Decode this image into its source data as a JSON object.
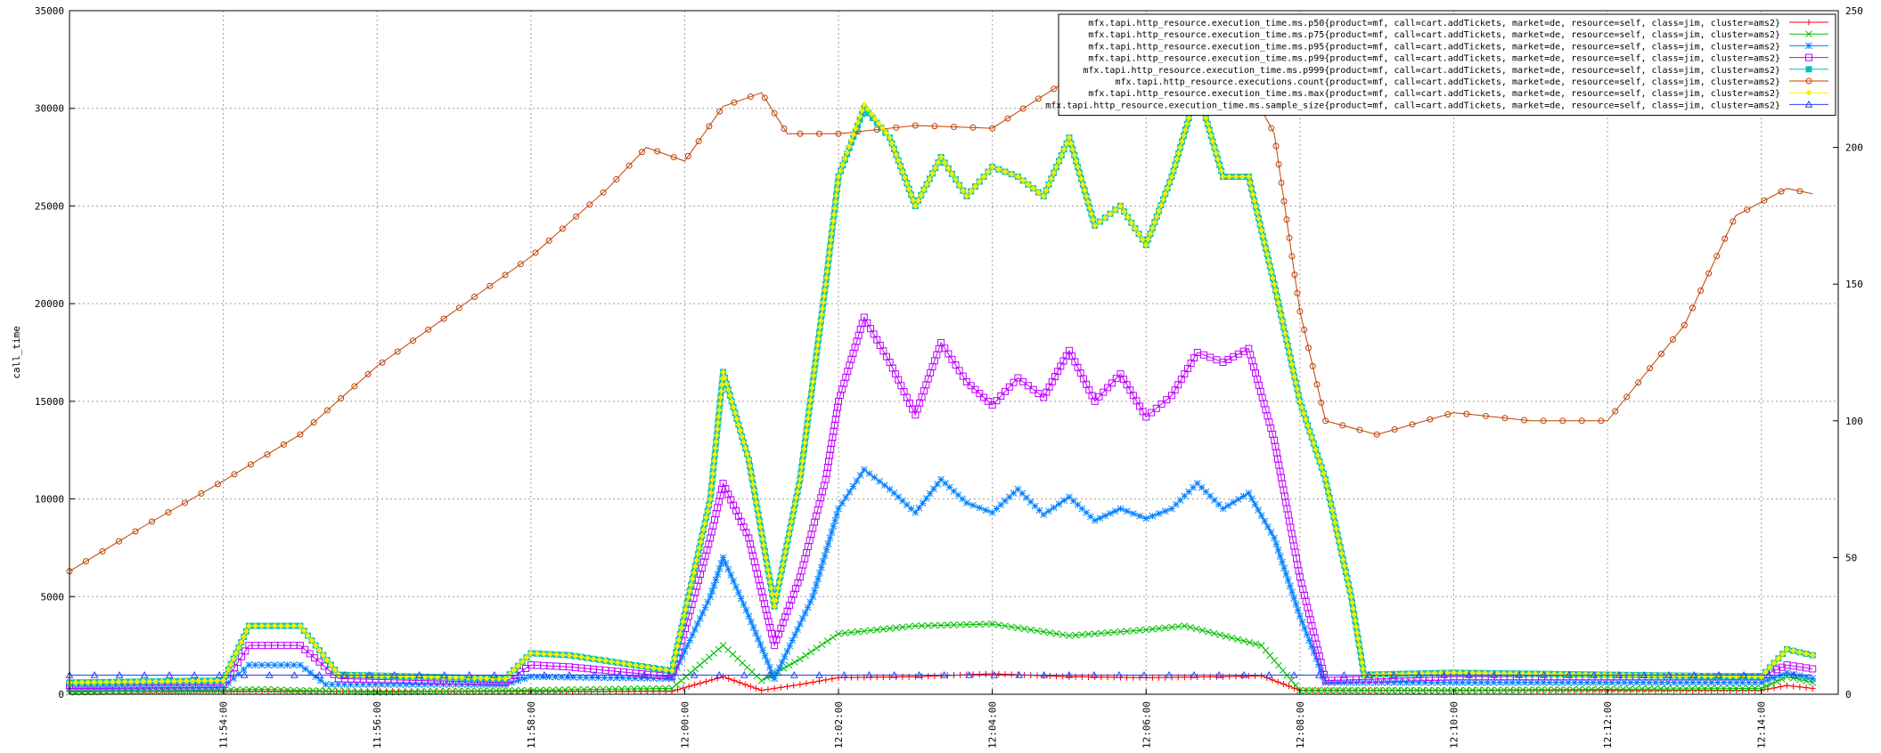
{
  "chart_data": {
    "type": "line",
    "title": "",
    "xlabel": "",
    "ylabel": "call_time",
    "y2label": "",
    "xlim": [
      "11:52:00",
      "12:15:00"
    ],
    "ylim": [
      0,
      35000
    ],
    "y2lim": [
      0,
      250
    ],
    "grid": true,
    "legend_position": "top-right",
    "x_ticks": [
      "11:54:00",
      "11:56:00",
      "11:58:00",
      "12:00:00",
      "12:02:00",
      "12:04:00",
      "12:06:00",
      "12:08:00",
      "12:10:00",
      "12:12:00",
      "12:14:00"
    ],
    "y_ticks": [
      "0",
      "5000",
      "10000",
      "15000",
      "20000",
      "25000",
      "30000",
      "35000"
    ],
    "y2_ticks": [
      "0",
      "50",
      "100",
      "150",
      "200",
      "250"
    ],
    "series": [
      {
        "name": "mfx.tapi.http_resource.execution_time.ms.p50{product=mf, call=cart.addTickets, market=de, resource=self, class=jim, cluster=ams2}",
        "color": "#ff0000",
        "marker": "plus",
        "axis": "y1",
        "points": [
          [
            "11:52:00",
            150
          ],
          [
            "11:59:50",
            150
          ],
          [
            "12:00:30",
            900
          ],
          [
            "12:01:00",
            200
          ],
          [
            "12:01:30",
            500
          ],
          [
            "12:02:00",
            850
          ],
          [
            "12:03:00",
            900
          ],
          [
            "12:04:00",
            1050
          ],
          [
            "12:05:00",
            900
          ],
          [
            "12:06:00",
            850
          ],
          [
            "12:07:00",
            900
          ],
          [
            "12:07:30",
            950
          ],
          [
            "12:08:00",
            200
          ],
          [
            "12:14:00",
            200
          ],
          [
            "12:14:20",
            450
          ],
          [
            "12:14:40",
            300
          ]
        ]
      },
      {
        "name": "mfx.tapi.http_resource.execution_time.ms.p75{product=mf, call=cart.addTickets, market=de, resource=self, class=jim, cluster=ams2}",
        "color": "#00c000",
        "marker": "x",
        "axis": "y1",
        "points": [
          [
            "11:52:00",
            100
          ],
          [
            "11:54:30",
            250
          ],
          [
            "11:56:00",
            100
          ],
          [
            "11:59:50",
            300
          ],
          [
            "12:00:30",
            2500
          ],
          [
            "12:01:00",
            700
          ],
          [
            "12:01:30",
            1800
          ],
          [
            "12:02:00",
            3100
          ],
          [
            "12:03:00",
            3500
          ],
          [
            "12:04:00",
            3600
          ],
          [
            "12:05:00",
            3000
          ],
          [
            "12:06:00",
            3300
          ],
          [
            "12:06:30",
            3500
          ],
          [
            "12:07:30",
            2500
          ],
          [
            "12:08:00",
            200
          ],
          [
            "12:10:00",
            200
          ],
          [
            "12:14:00",
            300
          ],
          [
            "12:14:20",
            900
          ],
          [
            "12:14:40",
            600
          ]
        ]
      },
      {
        "name": "mfx.tapi.http_resource.execution_time.ms.p95{product=mf, call=cart.addTickets, market=de, resource=self, class=jim, cluster=ams2}",
        "color": "#0080ff",
        "marker": "star",
        "axis": "y1",
        "points": [
          [
            "11:52:00",
            300
          ],
          [
            "11:54:00",
            350
          ],
          [
            "11:54:20",
            1500
          ],
          [
            "11:55:00",
            1500
          ],
          [
            "11:55:20",
            500
          ],
          [
            "11:57:40",
            500
          ],
          [
            "11:58:00",
            900
          ],
          [
            "11:59:50",
            800
          ],
          [
            "12:00:20",
            5000
          ],
          [
            "12:00:30",
            7000
          ],
          [
            "12:00:50",
            4000
          ],
          [
            "12:01:10",
            800
          ],
          [
            "12:01:40",
            5000
          ],
          [
            "12:02:00",
            9500
          ],
          [
            "12:02:20",
            11500
          ],
          [
            "12:02:40",
            10500
          ],
          [
            "12:03:00",
            9300
          ],
          [
            "12:03:20",
            11000
          ],
          [
            "12:03:40",
            9800
          ],
          [
            "12:04:00",
            9300
          ],
          [
            "12:04:20",
            10500
          ],
          [
            "12:04:40",
            9200
          ],
          [
            "12:05:00",
            10100
          ],
          [
            "12:05:20",
            8900
          ],
          [
            "12:05:40",
            9500
          ],
          [
            "12:06:00",
            9000
          ],
          [
            "12:06:20",
            9500
          ],
          [
            "12:06:40",
            10800
          ],
          [
            "12:07:00",
            9500
          ],
          [
            "12:07:20",
            10300
          ],
          [
            "12:07:40",
            8000
          ],
          [
            "12:08:00",
            4000
          ],
          [
            "12:08:20",
            600
          ],
          [
            "12:14:00",
            600
          ],
          [
            "12:14:20",
            1100
          ],
          [
            "12:14:40",
            800
          ]
        ]
      },
      {
        "name": "mfx.tapi.http_resource.execution_time.ms.p99{product=mf, call=cart.addTickets, market=de, resource=self, class=jim, cluster=ams2}",
        "color": "#c000ff",
        "marker": "square",
        "axis": "y1",
        "points": [
          [
            "11:52:00",
            450
          ],
          [
            "11:54:00",
            500
          ],
          [
            "11:54:20",
            2500
          ],
          [
            "11:55:00",
            2500
          ],
          [
            "11:55:30",
            800
          ],
          [
            "11:57:40",
            600
          ],
          [
            "11:58:00",
            1500
          ],
          [
            "11:58:30",
            1400
          ],
          [
            "11:59:50",
            900
          ],
          [
            "12:00:20",
            8000
          ],
          [
            "12:00:30",
            10800
          ],
          [
            "12:00:50",
            8000
          ],
          [
            "12:01:10",
            2500
          ],
          [
            "12:01:30",
            6000
          ],
          [
            "12:01:50",
            11000
          ],
          [
            "12:02:00",
            15000
          ],
          [
            "12:02:20",
            19300
          ],
          [
            "12:02:40",
            17000
          ],
          [
            "12:03:00",
            14300
          ],
          [
            "12:03:20",
            18000
          ],
          [
            "12:03:40",
            16000
          ],
          [
            "12:04:00",
            14800
          ],
          [
            "12:04:20",
            16200
          ],
          [
            "12:04:40",
            15200
          ],
          [
            "12:05:00",
            17600
          ],
          [
            "12:05:20",
            15000
          ],
          [
            "12:05:40",
            16400
          ],
          [
            "12:06:00",
            14200
          ],
          [
            "12:06:20",
            15300
          ],
          [
            "12:06:40",
            17500
          ],
          [
            "12:07:00",
            17000
          ],
          [
            "12:07:20",
            17700
          ],
          [
            "12:07:40",
            13000
          ],
          [
            "12:08:00",
            6000
          ],
          [
            "12:08:20",
            700
          ],
          [
            "12:10:00",
            900
          ],
          [
            "12:14:00",
            900
          ],
          [
            "12:14:20",
            1500
          ],
          [
            "12:14:40",
            1300
          ]
        ]
      },
      {
        "name": "mfx.tapi.http_resource.execution_time.ms.p999{product=mf, call=cart.addTickets, market=de, resource=self, class=jim, cluster=ams2}",
        "color": "#00c0c0",
        "marker": "filled-square",
        "axis": "y1",
        "points": [
          [
            "11:52:00",
            600
          ],
          [
            "11:54:00",
            700
          ],
          [
            "11:54:20",
            3500
          ],
          [
            "11:55:00",
            3500
          ],
          [
            "11:55:30",
            1000
          ],
          [
            "11:57:40",
            800
          ],
          [
            "11:58:00",
            2100
          ],
          [
            "11:58:30",
            2000
          ],
          [
            "11:59:50",
            1200
          ],
          [
            "12:00:20",
            10000
          ],
          [
            "12:00:30",
            16500
          ],
          [
            "12:00:50",
            12000
          ],
          [
            "12:01:10",
            4500
          ],
          [
            "12:01:30",
            11000
          ],
          [
            "12:01:50",
            21000
          ],
          [
            "12:02:00",
            26500
          ],
          [
            "12:02:20",
            30000
          ],
          [
            "12:02:40",
            28500
          ],
          [
            "12:03:00",
            25000
          ],
          [
            "12:03:20",
            27500
          ],
          [
            "12:03:40",
            25500
          ],
          [
            "12:04:00",
            27000
          ],
          [
            "12:04:20",
            26500
          ],
          [
            "12:04:40",
            25500
          ],
          [
            "12:05:00",
            28500
          ],
          [
            "12:05:20",
            24000
          ],
          [
            "12:05:40",
            25000
          ],
          [
            "12:06:00",
            23000
          ],
          [
            "12:06:20",
            26500
          ],
          [
            "12:06:40",
            31000
          ],
          [
            "12:07:00",
            26500
          ],
          [
            "12:07:20",
            26500
          ],
          [
            "12:07:40",
            21000
          ],
          [
            "12:08:00",
            15000
          ],
          [
            "12:08:20",
            11000
          ],
          [
            "12:08:40",
            5000
          ],
          [
            "12:08:50",
            1000
          ],
          [
            "12:10:00",
            1100
          ],
          [
            "12:14:00",
            900
          ],
          [
            "12:14:20",
            2300
          ],
          [
            "12:14:40",
            2000
          ]
        ]
      },
      {
        "name": "mfx.tapi.http_resource.executions.count{product=mf, call=cart.addTickets, market=de, resource=self, class=jim, cluster=ams2}",
        "color": "#c04000",
        "marker": "circle",
        "axis": "y2",
        "points": [
          [
            "11:52:00",
            45
          ],
          [
            "11:53:00",
            62
          ],
          [
            "11:54:00",
            78
          ],
          [
            "11:55:00",
            95
          ],
          [
            "11:56:00",
            120
          ],
          [
            "11:57:00",
            140
          ],
          [
            "11:58:00",
            160
          ],
          [
            "11:59:00",
            185
          ],
          [
            "11:59:30",
            200
          ],
          [
            "12:00:00",
            195
          ],
          [
            "12:00:30",
            215
          ],
          [
            "12:01:00",
            220
          ],
          [
            "12:01:20",
            205
          ],
          [
            "12:02:00",
            205
          ],
          [
            "12:03:00",
            208
          ],
          [
            "12:04:00",
            207
          ],
          [
            "12:05:00",
            225
          ],
          [
            "12:06:00",
            240
          ],
          [
            "12:07:00",
            240
          ],
          [
            "12:07:40",
            205
          ],
          [
            "12:08:00",
            140
          ],
          [
            "12:08:20",
            100
          ],
          [
            "12:09:00",
            95
          ],
          [
            "12:10:00",
            103
          ],
          [
            "12:11:00",
            100
          ],
          [
            "12:12:00",
            100
          ],
          [
            "12:13:00",
            135
          ],
          [
            "12:13:40",
            175
          ],
          [
            "12:14:20",
            185
          ],
          [
            "12:14:40",
            183
          ]
        ]
      },
      {
        "name": "mfx.tapi.http_resource.execution_time.ms.max{product=mf, call=cart.addTickets, market=de, resource=self, class=jim, cluster=ams2}",
        "color": "#f0f000",
        "marker": "filled-diamond",
        "axis": "y1",
        "points": [
          [
            "11:52:00",
            600
          ],
          [
            "11:54:00",
            700
          ],
          [
            "11:54:20",
            3500
          ],
          [
            "11:55:00",
            3500
          ],
          [
            "11:55:30",
            1000
          ],
          [
            "11:57:40",
            800
          ],
          [
            "11:58:00",
            2100
          ],
          [
            "11:58:30",
            2000
          ],
          [
            "11:59:50",
            1200
          ],
          [
            "12:00:20",
            10000
          ],
          [
            "12:00:30",
            16500
          ],
          [
            "12:00:50",
            12000
          ],
          [
            "12:01:10",
            4500
          ],
          [
            "12:01:30",
            11000
          ],
          [
            "12:01:50",
            21000
          ],
          [
            "12:02:00",
            26500
          ],
          [
            "12:02:20",
            30200
          ],
          [
            "12:02:40",
            28500
          ],
          [
            "12:03:00",
            25000
          ],
          [
            "12:03:20",
            27500
          ],
          [
            "12:03:40",
            25500
          ],
          [
            "12:04:00",
            27000
          ],
          [
            "12:04:20",
            26500
          ],
          [
            "12:04:40",
            25500
          ],
          [
            "12:05:00",
            28500
          ],
          [
            "12:05:20",
            24000
          ],
          [
            "12:05:40",
            25000
          ],
          [
            "12:06:00",
            23000
          ],
          [
            "12:06:20",
            26500
          ],
          [
            "12:06:40",
            31000
          ],
          [
            "12:07:00",
            26500
          ],
          [
            "12:07:20",
            26500
          ],
          [
            "12:07:40",
            21000
          ],
          [
            "12:08:00",
            15000
          ],
          [
            "12:08:20",
            11000
          ],
          [
            "12:08:40",
            5000
          ],
          [
            "12:08:50",
            1000
          ],
          [
            "12:10:00",
            1100
          ],
          [
            "12:14:00",
            900
          ],
          [
            "12:14:20",
            2300
          ],
          [
            "12:14:40",
            2000
          ]
        ]
      },
      {
        "name": "mfx.tapi.http_resource.execution_time.ms.sample_size{product=mf, call=cart.addTickets, market=de, resource=self, class=jim, cluster=ams2}",
        "color": "#2040ff",
        "marker": "triangle",
        "axis": "y2",
        "points": [
          [
            "11:52:00",
            7
          ],
          [
            "12:14:40",
            7
          ]
        ]
      }
    ]
  }
}
